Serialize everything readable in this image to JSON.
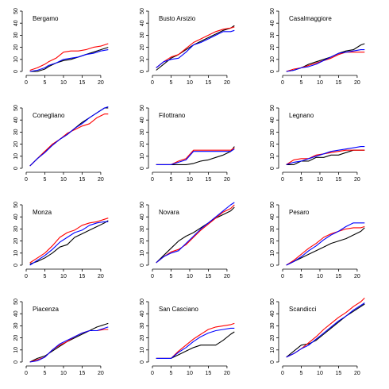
{
  "chart_data": [
    {
      "type": "line",
      "title": "Bergamo",
      "x": [
        1,
        3,
        5,
        6,
        8,
        10,
        12,
        14,
        16,
        18,
        20,
        22
      ],
      "xticks": [
        0,
        5,
        10,
        15,
        20
      ],
      "yticks": [
        0,
        10,
        20,
        30,
        40,
        50
      ],
      "ylim": [
        0,
        50
      ],
      "xlim": [
        0,
        23
      ],
      "series": [
        {
          "color": "#000000",
          "values": [
            0,
            0,
            2,
            4,
            7,
            9,
            10,
            12,
            14,
            16,
            18,
            20
          ]
        },
        {
          "color": "#ff0000",
          "values": [
            1,
            3,
            6,
            8,
            11,
            16,
            17,
            17,
            18,
            20,
            21,
            23
          ]
        },
        {
          "color": "#0000ff",
          "values": [
            0,
            1,
            3,
            5,
            7,
            10,
            11,
            12,
            14,
            15,
            17,
            18
          ]
        }
      ]
    },
    {
      "type": "line",
      "title": "Busto Arsizio",
      "x": [
        1,
        3,
        5,
        7,
        9,
        11,
        13,
        15,
        17,
        19,
        21,
        22
      ],
      "xticks": [
        0,
        5,
        10,
        15,
        20
      ],
      "yticks": [
        0,
        10,
        20,
        30,
        40,
        50
      ],
      "ylim": [
        0,
        50
      ],
      "xlim": [
        0,
        23
      ],
      "series": [
        {
          "color": "#000000",
          "values": [
            1,
            6,
            11,
            14,
            18,
            22,
            25,
            28,
            31,
            34,
            36,
            38
          ]
        },
        {
          "color": "#ff0000",
          "values": [
            3,
            8,
            12,
            14,
            19,
            24,
            27,
            30,
            33,
            35,
            36,
            37
          ]
        },
        {
          "color": "#0000ff",
          "values": [
            3,
            8,
            10,
            11,
            16,
            22,
            24,
            27,
            30,
            33,
            33,
            34
          ]
        }
      ]
    },
    {
      "type": "line",
      "title": "Casalmaggiore",
      "x": [
        1,
        3,
        5,
        7,
        9,
        11,
        13,
        15,
        17,
        19,
        21,
        22
      ],
      "xticks": [
        0,
        5,
        10,
        15,
        20
      ],
      "yticks": [
        0,
        10,
        20,
        30,
        40,
        50
      ],
      "ylim": [
        0,
        50
      ],
      "xlim": [
        0,
        23
      ],
      "series": [
        {
          "color": "#000000",
          "values": [
            0,
            1,
            3,
            6,
            8,
            10,
            12,
            15,
            17,
            18,
            22,
            23
          ]
        },
        {
          "color": "#ff0000",
          "values": [
            0,
            2,
            3,
            5,
            7,
            9,
            11,
            14,
            16,
            16,
            16,
            16
          ]
        },
        {
          "color": "#0000ff",
          "values": [
            0,
            1,
            3,
            4,
            6,
            9,
            12,
            15,
            16,
            17,
            18,
            18
          ]
        }
      ]
    },
    {
      "type": "line",
      "title": "Conegliano",
      "x": [
        1,
        3,
        5,
        7,
        9,
        11,
        13,
        15,
        17,
        19,
        21,
        22
      ],
      "xticks": [
        0,
        5,
        10,
        15,
        20
      ],
      "yticks": [
        0,
        10,
        20,
        30,
        40,
        50
      ],
      "ylim": [
        0,
        50
      ],
      "xlim": [
        0,
        23
      ],
      "series": [
        {
          "color": "#000000",
          "values": [
            2,
            8,
            14,
            19,
            24,
            28,
            33,
            38,
            42,
            46,
            50,
            50
          ]
        },
        {
          "color": "#ff0000",
          "values": [
            2,
            8,
            14,
            20,
            24,
            29,
            32,
            35,
            37,
            42,
            45,
            45
          ]
        },
        {
          "color": "#0000ff",
          "values": [
            2,
            8,
            13,
            19,
            24,
            28,
            33,
            37,
            42,
            46,
            50,
            51
          ]
        }
      ]
    },
    {
      "type": "line",
      "title": "Filottrano",
      "x": [
        1,
        3,
        5,
        7,
        9,
        11,
        13,
        15,
        17,
        19,
        21,
        22
      ],
      "xticks": [
        0,
        5,
        10,
        15,
        20
      ],
      "yticks": [
        0,
        10,
        20,
        30,
        40,
        50
      ],
      "ylim": [
        0,
        50
      ],
      "xlim": [
        0,
        23
      ],
      "series": [
        {
          "color": "#000000",
          "values": [
            3,
            3,
            3,
            3,
            3,
            4,
            6,
            7,
            9,
            11,
            14,
            18
          ]
        },
        {
          "color": "#ff0000",
          "values": [
            3,
            3,
            3,
            6,
            8,
            15,
            15,
            15,
            15,
            15,
            15,
            17
          ]
        },
        {
          "color": "#0000ff",
          "values": [
            3,
            3,
            3,
            5,
            7,
            14,
            14,
            14,
            14,
            14,
            14,
            16
          ]
        }
      ]
    },
    {
      "type": "line",
      "title": "Legnano",
      "x": [
        1,
        3,
        5,
        7,
        9,
        11,
        13,
        15,
        17,
        19,
        21,
        22
      ],
      "xticks": [
        0,
        5,
        10,
        15,
        20
      ],
      "yticks": [
        0,
        10,
        20,
        30,
        40,
        50
      ],
      "ylim": [
        0,
        50
      ],
      "xlim": [
        0,
        23
      ],
      "series": [
        {
          "color": "#000000",
          "values": [
            3,
            3,
            6,
            6,
            9,
            9,
            11,
            11,
            13,
            15,
            15,
            15
          ]
        },
        {
          "color": "#ff0000",
          "values": [
            3,
            7,
            8,
            8,
            11,
            12,
            13,
            14,
            15,
            15,
            15,
            15
          ]
        },
        {
          "color": "#0000ff",
          "values": [
            3,
            5,
            6,
            8,
            10,
            12,
            14,
            15,
            16,
            17,
            18,
            18
          ]
        }
      ]
    },
    {
      "type": "line",
      "title": "Monza",
      "x": [
        1,
        3,
        5,
        7,
        9,
        11,
        13,
        15,
        17,
        19,
        21,
        22
      ],
      "xticks": [
        0,
        5,
        10,
        15,
        20
      ],
      "yticks": [
        0,
        10,
        20,
        30,
        40,
        50
      ],
      "ylim": [
        0,
        50
      ],
      "xlim": [
        0,
        23
      ],
      "series": [
        {
          "color": "#000000",
          "values": [
            1,
            3,
            6,
            10,
            15,
            17,
            23,
            26,
            29,
            32,
            35,
            37
          ]
        },
        {
          "color": "#ff0000",
          "values": [
            2,
            6,
            10,
            16,
            23,
            27,
            29,
            33,
            35,
            36,
            38,
            39
          ]
        },
        {
          "color": "#0000ff",
          "values": [
            0,
            4,
            8,
            13,
            19,
            23,
            27,
            29,
            33,
            35,
            36,
            36
          ]
        }
      ]
    },
    {
      "type": "line",
      "title": "Novara",
      "x": [
        1,
        3,
        5,
        7,
        9,
        11,
        13,
        15,
        17,
        19,
        21,
        22
      ],
      "xticks": [
        0,
        5,
        10,
        15,
        20
      ],
      "yticks": [
        0,
        10,
        20,
        30,
        40,
        50
      ],
      "ylim": [
        0,
        50
      ],
      "xlim": [
        0,
        23
      ],
      "series": [
        {
          "color": "#000000",
          "values": [
            2,
            8,
            14,
            20,
            24,
            27,
            31,
            35,
            39,
            42,
            45,
            48
          ]
        },
        {
          "color": "#ff0000",
          "values": [
            2,
            7,
            11,
            13,
            17,
            23,
            29,
            34,
            39,
            44,
            47,
            50
          ]
        },
        {
          "color": "#0000ff",
          "values": [
            2,
            7,
            10,
            12,
            18,
            24,
            30,
            35,
            40,
            45,
            50,
            52
          ]
        }
      ]
    },
    {
      "type": "line",
      "title": "Pesaro",
      "x": [
        1,
        3,
        5,
        7,
        9,
        11,
        13,
        15,
        17,
        19,
        21,
        22
      ],
      "xticks": [
        0,
        5,
        10,
        15,
        20
      ],
      "yticks": [
        0,
        10,
        20,
        30,
        40,
        50
      ],
      "ylim": [
        0,
        50
      ],
      "xlim": [
        0,
        23
      ],
      "series": [
        {
          "color": "#000000",
          "values": [
            0,
            3,
            6,
            9,
            12,
            15,
            18,
            20,
            22,
            25,
            28,
            31
          ]
        },
        {
          "color": "#ff0000",
          "values": [
            0,
            4,
            9,
            14,
            18,
            23,
            26,
            28,
            30,
            31,
            31,
            32
          ]
        },
        {
          "color": "#0000ff",
          "values": [
            0,
            3,
            7,
            12,
            16,
            21,
            25,
            28,
            32,
            35,
            35,
            35
          ]
        }
      ]
    },
    {
      "type": "line",
      "title": "Piacenza",
      "x": [
        1,
        3,
        5,
        7,
        9,
        11,
        13,
        15,
        17,
        19,
        21,
        22
      ],
      "xticks": [
        0,
        5,
        10,
        15,
        20
      ],
      "yticks": [
        0,
        10,
        20,
        30,
        40,
        50
      ],
      "ylim": [
        0,
        50
      ],
      "xlim": [
        0,
        23
      ],
      "series": [
        {
          "color": "#000000",
          "values": [
            0,
            3,
            5,
            9,
            13,
            17,
            20,
            23,
            26,
            29,
            31,
            32
          ]
        },
        {
          "color": "#ff0000",
          "values": [
            0,
            2,
            4,
            10,
            14,
            17,
            21,
            24,
            26,
            26,
            27,
            27
          ]
        },
        {
          "color": "#0000ff",
          "values": [
            0,
            1,
            4,
            10,
            15,
            18,
            21,
            24,
            26,
            26,
            28,
            29
          ]
        }
      ]
    },
    {
      "type": "line",
      "title": "San Casciano",
      "x": [
        1,
        3,
        5,
        7,
        9,
        11,
        13,
        15,
        17,
        19,
        21,
        22
      ],
      "xticks": [
        0,
        5,
        10,
        15,
        20
      ],
      "yticks": [
        0,
        10,
        20,
        30,
        40,
        50
      ],
      "ylim": [
        0,
        50
      ],
      "xlim": [
        0,
        23
      ],
      "series": [
        {
          "color": "#000000",
          "values": [
            3,
            3,
            3,
            6,
            9,
            12,
            14,
            14,
            14,
            18,
            23,
            25
          ]
        },
        {
          "color": "#ff0000",
          "values": [
            3,
            3,
            3,
            9,
            14,
            19,
            23,
            27,
            29,
            30,
            31,
            32
          ]
        },
        {
          "color": "#0000ff",
          "values": [
            3,
            3,
            3,
            8,
            12,
            17,
            21,
            24,
            26,
            27,
            28,
            28
          ]
        }
      ]
    },
    {
      "type": "line",
      "title": "Scandicci",
      "x": [
        1,
        3,
        5,
        7,
        9,
        11,
        13,
        15,
        17,
        19,
        21,
        22
      ],
      "xticks": [
        0,
        5,
        10,
        15,
        20
      ],
      "yticks": [
        0,
        10,
        20,
        30,
        40,
        50
      ],
      "ylim": [
        0,
        50
      ],
      "xlim": [
        0,
        23
      ],
      "series": [
        {
          "color": "#000000",
          "values": [
            4,
            9,
            14,
            15,
            18,
            23,
            28,
            33,
            38,
            42,
            46,
            48
          ]
        },
        {
          "color": "#ff0000",
          "values": [
            4,
            7,
            11,
            16,
            21,
            27,
            32,
            37,
            41,
            46,
            50,
            53
          ]
        },
        {
          "color": "#0000ff",
          "values": [
            4,
            7,
            11,
            14,
            19,
            24,
            29,
            34,
            38,
            43,
            47,
            49
          ]
        }
      ]
    }
  ]
}
